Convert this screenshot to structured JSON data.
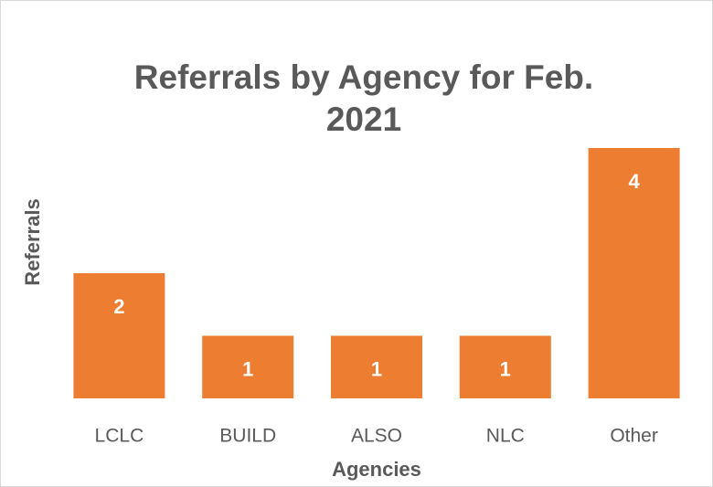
{
  "chart_data": {
    "type": "bar",
    "title": "Referrals by Agency for Feb. 2021",
    "x_label": "Agencies",
    "y_label": "Referrals",
    "categories": [
      "LCLC",
      "BUILD",
      "ALSO",
      "NLC",
      "Other"
    ],
    "values": [
      2,
      1,
      1,
      1,
      4
    ],
    "color": "#ed7d31"
  }
}
